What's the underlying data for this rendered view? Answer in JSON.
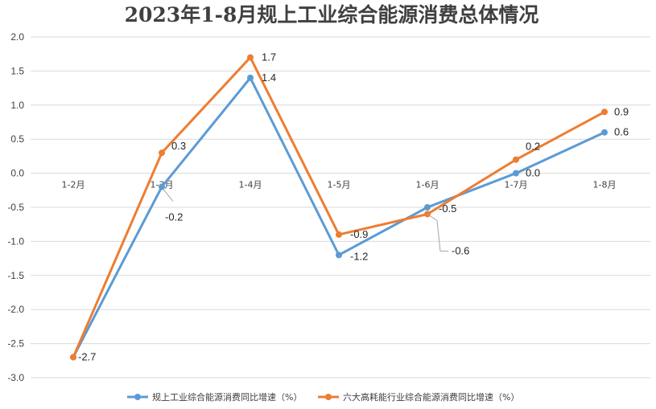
{
  "chart_data": {
    "type": "line",
    "title": "2023年1-8月规上工业综合能源消费总体情况",
    "xlabel": "",
    "ylabel": "",
    "categories": [
      "1-2月",
      "1-3月",
      "1-4月",
      "1-5月",
      "1-6月",
      "1-7月",
      "1-8月"
    ],
    "ylim": [
      -3.0,
      2.0
    ],
    "yticks": [
      "2.0",
      "1.5",
      "1.0",
      "0.5",
      "0.0",
      "-0.5",
      "-1.0",
      "-1.5",
      "-2.0",
      "-2.5",
      "-3.0"
    ],
    "grid": true,
    "legend_position": "bottom",
    "series": [
      {
        "name": "规上工业综合能源消费同比增速（%）",
        "color": "#5b9bd5",
        "values": [
          -2.7,
          -0.2,
          1.4,
          -1.2,
          -0.5,
          0.0,
          0.6
        ],
        "labels": [
          "-2.7",
          "-0.2",
          "1.4",
          "-1.2",
          "-0.5",
          "0.0",
          "0.6"
        ]
      },
      {
        "name": "六大高耗能行业综合能源消费同比增速（%）",
        "color": "#ed7d31",
        "values": [
          -2.7,
          0.3,
          1.7,
          -0.9,
          -0.6,
          0.2,
          0.9
        ],
        "labels": [
          "",
          "0.3",
          "1.7",
          "-0.9",
          "-0.6",
          "0.2",
          "0.9"
        ]
      }
    ]
  }
}
